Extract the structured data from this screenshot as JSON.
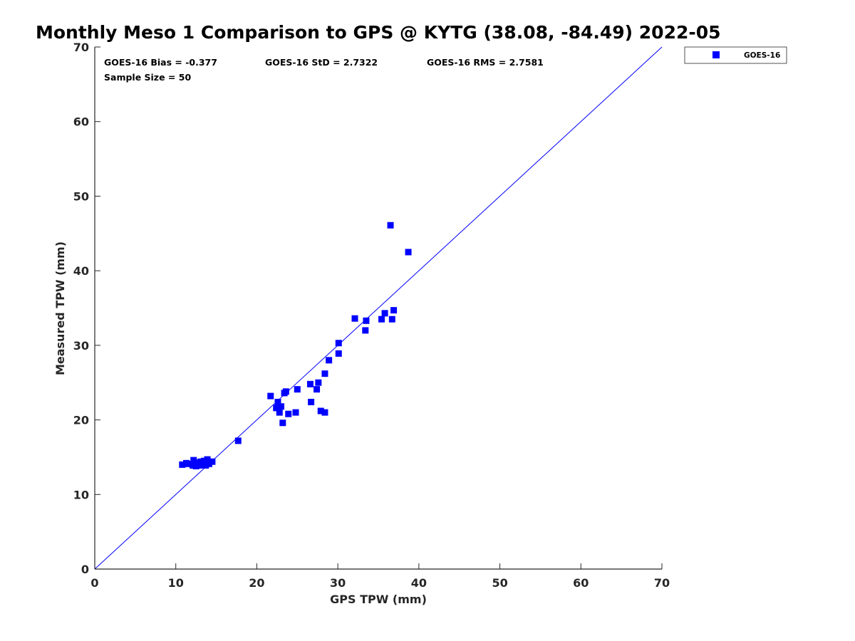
{
  "chart_data": {
    "type": "scatter",
    "title": "Monthly Meso 1 Comparison to GPS @ KYTG (38.08, -84.49) 2022-05",
    "xlabel": "GPS TPW (mm)",
    "ylabel": "Measured TPW (mm)",
    "xlim": [
      0,
      70
    ],
    "ylim": [
      0,
      70
    ],
    "xticks": [
      0,
      10,
      20,
      30,
      40,
      50,
      60,
      70
    ],
    "yticks": [
      0,
      10,
      20,
      30,
      40,
      50,
      60,
      70
    ],
    "grid": false,
    "legend_position": "outside-top-right",
    "reference_line": {
      "x": [
        0,
        70
      ],
      "y": [
        0,
        70
      ],
      "color": "#0000ff"
    },
    "stats": {
      "bias": "GOES-16 Bias = -0.377",
      "std": "GOES-16 StD = 2.7322",
      "rms": "GOES-16 RMS = 2.7581",
      "sample": "Sample Size = 50"
    },
    "series": [
      {
        "name": "GOES-16",
        "color": "#0000ff",
        "marker": "square",
        "points": [
          [
            10.8,
            14.0
          ],
          [
            11.3,
            14.2
          ],
          [
            11.6,
            14.1
          ],
          [
            12.1,
            13.9
          ],
          [
            12.2,
            14.6
          ],
          [
            12.5,
            13.8
          ],
          [
            12.7,
            14.2
          ],
          [
            12.9,
            13.9
          ],
          [
            13.1,
            14.4
          ],
          [
            13.3,
            14.1
          ],
          [
            13.5,
            14.5
          ],
          [
            13.7,
            13.9
          ],
          [
            13.8,
            14.3
          ],
          [
            13.9,
            14.7
          ],
          [
            14.1,
            14.1
          ],
          [
            14.5,
            14.4
          ],
          [
            17.7,
            17.2
          ],
          [
            21.7,
            23.2
          ],
          [
            22.4,
            21.6
          ],
          [
            22.6,
            22.4
          ],
          [
            22.8,
            21.0
          ],
          [
            23.0,
            21.8
          ],
          [
            23.2,
            19.6
          ],
          [
            23.4,
            23.6
          ],
          [
            23.6,
            23.8
          ],
          [
            23.9,
            20.8
          ],
          [
            24.8,
            21.0
          ],
          [
            25.0,
            24.1
          ],
          [
            26.6,
            24.8
          ],
          [
            26.7,
            22.4
          ],
          [
            27.4,
            24.1
          ],
          [
            27.6,
            25.0
          ],
          [
            27.9,
            21.2
          ],
          [
            28.4,
            26.2
          ],
          [
            28.4,
            21.0
          ],
          [
            28.9,
            28.0
          ],
          [
            30.1,
            28.9
          ],
          [
            30.1,
            30.3
          ],
          [
            32.1,
            33.6
          ],
          [
            33.4,
            32.0
          ],
          [
            33.5,
            33.3
          ],
          [
            35.4,
            33.5
          ],
          [
            35.8,
            34.3
          ],
          [
            36.5,
            46.1
          ],
          [
            36.7,
            33.5
          ],
          [
            36.9,
            34.7
          ],
          [
            38.7,
            42.5
          ],
          [
            12.4,
            14.0
          ],
          [
            13.0,
            14.3
          ],
          [
            13.6,
            14.0
          ]
        ]
      }
    ]
  }
}
